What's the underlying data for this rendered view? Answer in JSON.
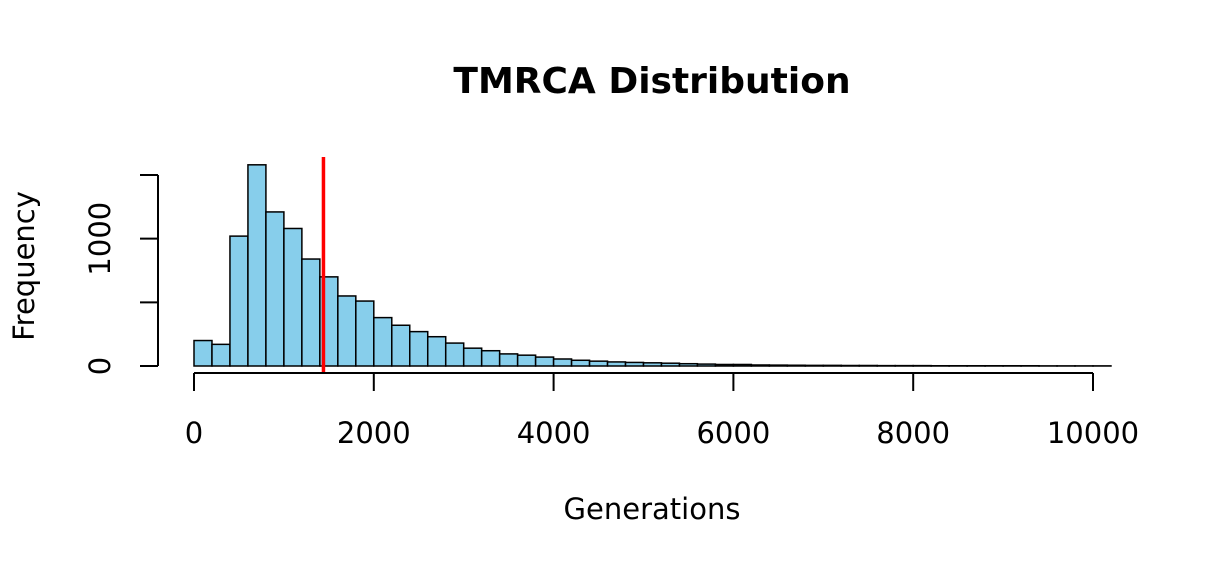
{
  "chart_data": {
    "type": "bar",
    "title": "TMRCA Distribution",
    "xlabel": "Generations",
    "ylabel": "Frequency",
    "xlim": [
      0,
      10200
    ],
    "ylim": [
      0,
      1500
    ],
    "x_ticks": [
      0,
      2000,
      4000,
      6000,
      8000,
      10000
    ],
    "x_tick_labels": [
      "0",
      "2000",
      "4000",
      "6000",
      "8000",
      "10000"
    ],
    "y_ticks": [
      0,
      500,
      1000,
      1500
    ],
    "y_tick_labels": [
      "0",
      "",
      "1000",
      ""
    ],
    "bin_width": 200,
    "bin_starts": [
      0,
      200,
      400,
      600,
      800,
      1000,
      1200,
      1400,
      1600,
      1800,
      2000,
      2200,
      2400,
      2600,
      2800,
      3000,
      3200,
      3400,
      3600,
      3800,
      4000,
      4200,
      4400,
      4600,
      4800,
      5000,
      5200,
      5400,
      5600,
      5800,
      6000,
      6200,
      6400,
      6600,
      6800,
      7000,
      7200,
      7400,
      7600,
      7800,
      8000,
      8200,
      8400,
      8600,
      8800,
      9000,
      9200,
      9400,
      9600,
      9800,
      10000
    ],
    "values": [
      200,
      170,
      1020,
      1580,
      1210,
      1080,
      840,
      700,
      550,
      510,
      380,
      320,
      270,
      230,
      180,
      140,
      120,
      95,
      85,
      70,
      55,
      45,
      38,
      32,
      28,
      25,
      22,
      18,
      15,
      12,
      12,
      8,
      7,
      6,
      5,
      5,
      4,
      4,
      3,
      3,
      3,
      2,
      2,
      2,
      2,
      2,
      2,
      1,
      1,
      1,
      1
    ],
    "reference_line": {
      "x": 1440,
      "color": "#ff0000"
    },
    "bar_fill": "#87ceeb",
    "bar_stroke": "#000000",
    "grid": false,
    "legend": "none"
  }
}
